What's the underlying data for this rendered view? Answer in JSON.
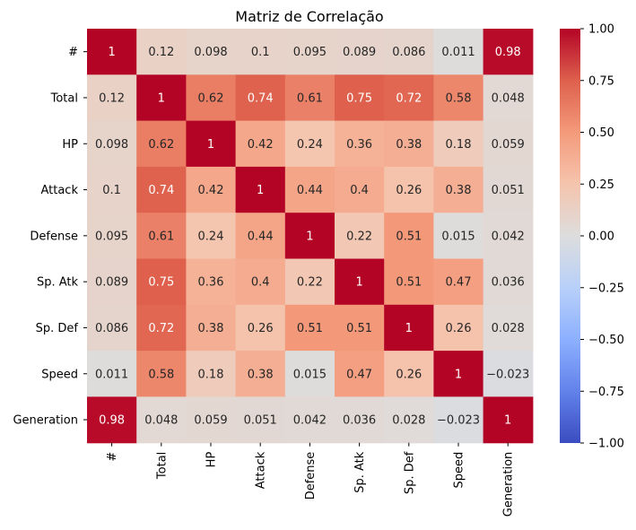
{
  "chart_data": {
    "type": "heatmap",
    "title": "Matriz de Correlação",
    "labels": [
      "#",
      "Total",
      "HP",
      "Attack",
      "Defense",
      "Sp. Atk",
      "Sp. Def",
      "Speed",
      "Generation"
    ],
    "matrix": [
      [
        1,
        0.12,
        0.098,
        0.1,
        0.095,
        0.089,
        0.086,
        0.011,
        0.98
      ],
      [
        0.12,
        1,
        0.62,
        0.74,
        0.61,
        0.75,
        0.72,
        0.58,
        0.048
      ],
      [
        0.098,
        0.62,
        1,
        0.42,
        0.24,
        0.36,
        0.38,
        0.18,
        0.059
      ],
      [
        0.1,
        0.74,
        0.42,
        1,
        0.44,
        0.4,
        0.26,
        0.38,
        0.051
      ],
      [
        0.095,
        0.61,
        0.24,
        0.44,
        1,
        0.22,
        0.51,
        0.015,
        0.042
      ],
      [
        0.089,
        0.75,
        0.36,
        0.4,
        0.22,
        1,
        0.51,
        0.47,
        0.036
      ],
      [
        0.086,
        0.72,
        0.38,
        0.26,
        0.51,
        0.51,
        1,
        0.26,
        0.028
      ],
      [
        0.011,
        0.58,
        0.18,
        0.38,
        0.015,
        0.47,
        0.26,
        1,
        -0.023
      ],
      [
        0.98,
        0.048,
        0.059,
        0.051,
        0.042,
        0.036,
        0.028,
        -0.023,
        1
      ]
    ],
    "colormap": "coolwarm",
    "vmin": -1,
    "vmax": 1,
    "colorbar_ticks": [
      "1.00",
      "0.75",
      "0.50",
      "0.25",
      "0.00",
      "−0.25",
      "−0.50",
      "−0.75",
      "−1.00"
    ],
    "colorbar_tick_values": [
      1,
      0.75,
      0.5,
      0.25,
      0,
      -0.25,
      -0.5,
      -0.75,
      -1
    ]
  }
}
